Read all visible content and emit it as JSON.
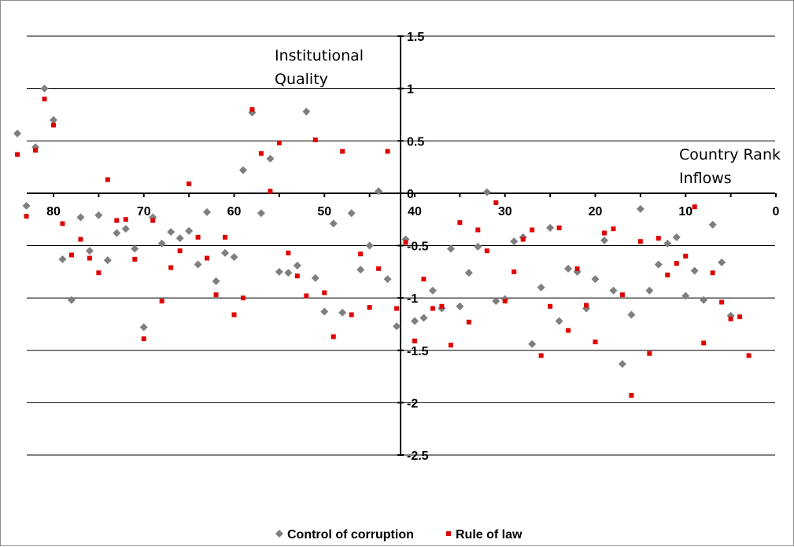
{
  "chart_data": {
    "type": "scatter",
    "title": "",
    "ylabel_lines": [
      "Institutional",
      "Quality"
    ],
    "xlabel": "Country Rank",
    "annotation": "Inflows",
    "xlim": [
      0,
      84
    ],
    "x_reversed": true,
    "ylim": [
      -2.5,
      1.5
    ],
    "x_ticks": [
      0,
      10,
      20,
      30,
      40,
      50,
      60,
      70,
      80
    ],
    "y_ticks": [
      1.5,
      1,
      0.5,
      0,
      -0.5,
      -1,
      -1.5,
      -2,
      -2.5
    ],
    "grid": true,
    "legend_position": "bottom",
    "colors": {
      "control": "#7f7f7f",
      "rule": "#e00000"
    },
    "series": [
      {
        "name": "Control of corruption",
        "marker": "diamond",
        "points": [
          [
            84,
            0.57
          ],
          [
            83,
            -0.12
          ],
          [
            82,
            0.44
          ],
          [
            81,
            1.0
          ],
          [
            80,
            0.7
          ],
          [
            79,
            -0.63
          ],
          [
            78,
            -1.02
          ],
          [
            77,
            -0.23
          ],
          [
            76,
            -0.55
          ],
          [
            75,
            -0.21
          ],
          [
            74,
            -0.64
          ],
          [
            73,
            -0.38
          ],
          [
            72,
            -0.34
          ],
          [
            71,
            -0.53
          ],
          [
            70,
            -1.28
          ],
          [
            69,
            -0.23
          ],
          [
            68,
            -0.48
          ],
          [
            67,
            -0.37
          ],
          [
            66,
            -0.43
          ],
          [
            65,
            -0.36
          ],
          [
            64,
            -0.68
          ],
          [
            63,
            -0.18
          ],
          [
            62,
            -0.84
          ],
          [
            61,
            -0.57
          ],
          [
            60,
            -0.61
          ],
          [
            59,
            0.22
          ],
          [
            58,
            0.77
          ],
          [
            57,
            -0.19
          ],
          [
            56,
            0.33
          ],
          [
            55,
            -0.75
          ],
          [
            54,
            -0.76
          ],
          [
            53,
            -0.69
          ],
          [
            52,
            0.78
          ],
          [
            51,
            -0.81
          ],
          [
            50,
            -1.13
          ],
          [
            49,
            -0.29
          ],
          [
            48,
            -1.14
          ],
          [
            47,
            -0.19
          ],
          [
            46,
            -0.73
          ],
          [
            45,
            -0.5
          ],
          [
            44,
            0.02
          ],
          [
            43,
            -0.82
          ],
          [
            42,
            -1.27
          ],
          [
            41,
            -0.44
          ],
          [
            40,
            -1.22
          ],
          [
            39,
            -1.19
          ],
          [
            38,
            -0.93
          ],
          [
            37,
            -1.1
          ],
          [
            36,
            -0.53
          ],
          [
            35,
            -1.08
          ],
          [
            34,
            -0.76
          ],
          [
            33,
            -0.51
          ],
          [
            32,
            0.01
          ],
          [
            31,
            -1.03
          ],
          [
            30,
            -1.01
          ],
          [
            29,
            -0.46
          ],
          [
            28,
            -0.42
          ],
          [
            27,
            -1.44
          ],
          [
            26,
            -0.9
          ],
          [
            25,
            -0.33
          ],
          [
            24,
            -1.22
          ],
          [
            23,
            -0.72
          ],
          [
            22,
            -0.75
          ],
          [
            21,
            -1.1
          ],
          [
            20,
            -0.82
          ],
          [
            19,
            -0.45
          ],
          [
            18,
            -0.93
          ],
          [
            17,
            -1.63
          ],
          [
            16,
            -1.16
          ],
          [
            15,
            -0.15
          ],
          [
            14,
            -0.93
          ],
          [
            13,
            -0.68
          ],
          [
            12,
            -0.48
          ],
          [
            11,
            -0.42
          ],
          [
            10,
            -0.98
          ],
          [
            9,
            -0.74
          ],
          [
            8,
            -1.02
          ],
          [
            7,
            -0.3
          ],
          [
            6,
            -0.66
          ],
          [
            5,
            -1.17
          ]
        ]
      },
      {
        "name": "Rule of law",
        "marker": "square",
        "points": [
          [
            84,
            0.37
          ],
          [
            83,
            -0.22
          ],
          [
            82,
            0.41
          ],
          [
            81,
            0.9
          ],
          [
            80,
            0.65
          ],
          [
            79,
            -0.29
          ],
          [
            78,
            -0.59
          ],
          [
            77,
            -0.44
          ],
          [
            76,
            -0.62
          ],
          [
            75,
            -0.76
          ],
          [
            74,
            0.13
          ],
          [
            73,
            -0.26
          ],
          [
            72,
            -0.25
          ],
          [
            71,
            -0.63
          ],
          [
            70,
            -1.39
          ],
          [
            69,
            -0.26
          ],
          [
            68,
            -1.03
          ],
          [
            67,
            -0.71
          ],
          [
            66,
            -0.55
          ],
          [
            65,
            0.09
          ],
          [
            64,
            -0.42
          ],
          [
            63,
            -0.62
          ],
          [
            62,
            -0.97
          ],
          [
            61,
            -0.42
          ],
          [
            60,
            -1.16
          ],
          [
            59,
            -1.0
          ],
          [
            58,
            0.8
          ],
          [
            57,
            0.38
          ],
          [
            56,
            0.02
          ],
          [
            55,
            0.48
          ],
          [
            54,
            -0.57
          ],
          [
            53,
            -0.79
          ],
          [
            52,
            -0.98
          ],
          [
            51,
            0.51
          ],
          [
            50,
            -0.95
          ],
          [
            49,
            -1.37
          ],
          [
            48,
            0.4
          ],
          [
            47,
            -1.16
          ],
          [
            46,
            -0.58
          ],
          [
            45,
            -1.09
          ],
          [
            44,
            -0.72
          ],
          [
            43,
            0.4
          ],
          [
            42,
            -1.1
          ],
          [
            41,
            -0.47
          ],
          [
            40,
            -1.41
          ],
          [
            39,
            -0.82
          ],
          [
            38,
            -1.1
          ],
          [
            37,
            -1.08
          ],
          [
            36,
            -1.45
          ],
          [
            35,
            -0.28
          ],
          [
            34,
            -1.23
          ],
          [
            33,
            -0.35
          ],
          [
            32,
            -0.55
          ],
          [
            31,
            -0.09
          ],
          [
            30,
            -1.03
          ],
          [
            29,
            -0.75
          ],
          [
            28,
            -0.44
          ],
          [
            27,
            -0.35
          ],
          [
            26,
            -1.55
          ],
          [
            25,
            -1.08
          ],
          [
            24,
            -0.33
          ],
          [
            23,
            -1.31
          ],
          [
            22,
            -0.72
          ],
          [
            21,
            -1.07
          ],
          [
            20,
            -1.42
          ],
          [
            19,
            -0.38
          ],
          [
            18,
            -0.34
          ],
          [
            17,
            -0.97
          ],
          [
            16,
            -1.93
          ],
          [
            15,
            -0.46
          ],
          [
            14,
            -1.53
          ],
          [
            13,
            -0.43
          ],
          [
            12,
            -0.78
          ],
          [
            11,
            -0.67
          ],
          [
            10,
            -0.6
          ],
          [
            9,
            -0.13
          ],
          [
            8,
            -1.43
          ],
          [
            7,
            -0.76
          ],
          [
            6,
            -1.04
          ],
          [
            5,
            -1.2
          ],
          [
            4,
            -1.18
          ],
          [
            3,
            -1.55
          ]
        ]
      }
    ]
  }
}
